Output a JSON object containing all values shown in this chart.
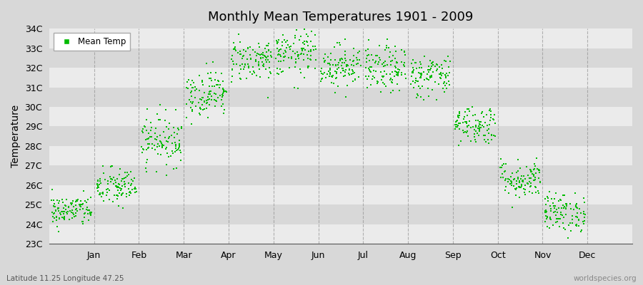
{
  "title": "Monthly Mean Temperatures 1901 - 2009",
  "ylabel": "Temperature",
  "bottom_left_text": "Latitude 11.25 Longitude 47.25",
  "bottom_right_text": "worldspecies.org",
  "legend_label": "Mean Temp",
  "ylim": [
    23,
    34
  ],
  "ytick_labels": [
    "23C",
    "24C",
    "25C",
    "26C",
    "27C",
    "28C",
    "29C",
    "30C",
    "31C",
    "32C",
    "33C",
    "34C"
  ],
  "ytick_values": [
    23,
    24,
    25,
    26,
    27,
    28,
    29,
    30,
    31,
    32,
    33,
    34
  ],
  "months": [
    "Jan",
    "Feb",
    "Mar",
    "Apr",
    "May",
    "Jun",
    "Jul",
    "Aug",
    "Sep",
    "Oct",
    "Nov",
    "Dec"
  ],
  "marker_color": "#00bb00",
  "background_color": "#d8d8d8",
  "band_color": "#ebebeb",
  "band_alpha": 1.0,
  "grid_color": "#888888",
  "month_means": [
    24.7,
    25.9,
    28.3,
    30.7,
    32.4,
    32.7,
    32.1,
    31.9,
    31.6,
    29.1,
    26.3,
    24.6
  ],
  "month_stds": [
    0.4,
    0.5,
    0.65,
    0.6,
    0.55,
    0.6,
    0.55,
    0.6,
    0.55,
    0.5,
    0.5,
    0.5
  ],
  "n_years": 109,
  "seed": 42,
  "marker_size": 4
}
